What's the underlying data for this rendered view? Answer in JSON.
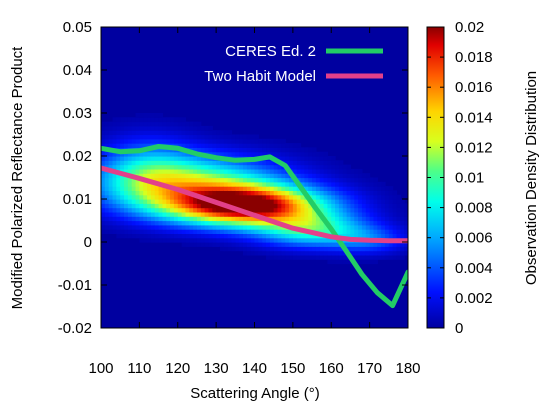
{
  "chart_data": {
    "type": "heatmap",
    "title": "",
    "xlabel": "Scattering Angle (°)",
    "ylabel": "Modified Polarized Reflectance Product",
    "colorbar_label": "Observation Density Distribution",
    "xlim": [
      100,
      180
    ],
    "ylim": [
      -0.02,
      0.05
    ],
    "x_ticks": [
      100,
      110,
      120,
      130,
      140,
      150,
      160,
      170,
      180
    ],
    "x_tick_labels": [
      "100",
      "110",
      "120",
      "130",
      "140",
      "150",
      "160",
      "170",
      "180"
    ],
    "y_ticks": [
      -0.02,
      -0.01,
      0,
      0.01,
      0.02,
      0.03,
      0.04,
      0.05
    ],
    "y_tick_labels": [
      "-0.02",
      "-0.01",
      "0",
      "0.01",
      "0.02",
      "0.03",
      "0.04",
      "0.05"
    ],
    "colorbar_range": [
      0,
      0.02
    ],
    "colorbar_ticks": [
      0,
      0.002,
      0.004,
      0.006,
      0.008,
      0.01,
      0.012,
      0.014,
      0.016,
      0.018,
      0.02
    ],
    "colorbar_tick_labels": [
      "0",
      "0.002",
      "0.004",
      "0.006",
      "0.008",
      "0.01",
      "0.012",
      "0.014",
      "0.016",
      "0.018",
      "0.02"
    ],
    "grid": false,
    "legend_position": "top-right",
    "series": [
      {
        "name": "CERES Ed. 2",
        "color": "#22cc66",
        "x": [
          100,
          105,
          110,
          115,
          120,
          125,
          130,
          135,
          140,
          144,
          148,
          152,
          156,
          160,
          164,
          168,
          172,
          176,
          180
        ],
        "y": [
          0.0218,
          0.021,
          0.0212,
          0.0222,
          0.0218,
          0.0205,
          0.0196,
          0.019,
          0.0192,
          0.0198,
          0.0178,
          0.0128,
          0.0078,
          0.003,
          -0.0022,
          -0.0075,
          -0.0118,
          -0.0148,
          -0.007
        ]
      },
      {
        "name": "Two Habit Model",
        "color": "#e2408a",
        "x": [
          100,
          110,
          120,
          130,
          140,
          150,
          160,
          165,
          170,
          175,
          180
        ],
        "y": [
          0.0172,
          0.0148,
          0.0122,
          0.0092,
          0.0062,
          0.0032,
          0.0012,
          0.0006,
          0.0004,
          0.0003,
          0.0003
        ]
      }
    ],
    "density": [
      {
        "x": 138,
        "y": 0.0085,
        "spread_x": 14,
        "spread_y": 0.0032,
        "peak": 0.0195
      },
      {
        "x": 124,
        "y": 0.0135,
        "spread_x": 16,
        "spread_y": 0.0045,
        "peak": 0.0105
      },
      {
        "x": 155,
        "y": 0.003,
        "spread_x": 10,
        "spread_y": 0.0028,
        "peak": 0.0085
      },
      {
        "x": 112,
        "y": 0.0165,
        "spread_x": 9,
        "spread_y": 0.0055,
        "peak": 0.005
      },
      {
        "x": 170,
        "y": 0.0005,
        "spread_x": 7,
        "spread_y": 0.0022,
        "peak": 0.0035
      }
    ]
  }
}
